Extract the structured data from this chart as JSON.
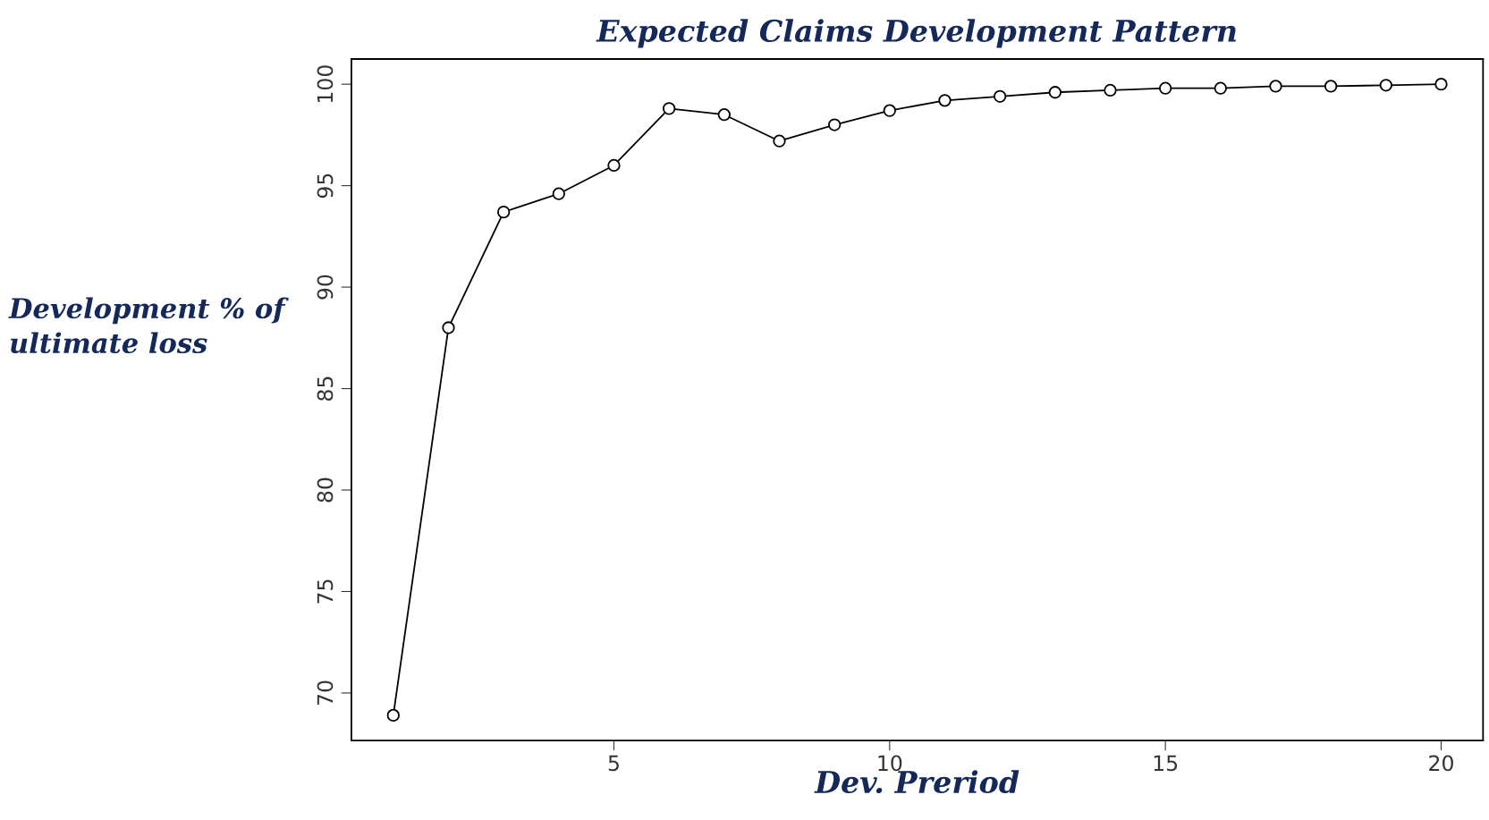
{
  "chart_data": {
    "type": "line",
    "title": "Expected Claims Development Pattern",
    "xlabel": "Dev. Preriod",
    "ylabel": "Development % of\nultimate loss",
    "x": [
      1,
      2,
      3,
      4,
      5,
      6,
      7,
      8,
      9,
      10,
      11,
      12,
      13,
      14,
      15,
      16,
      17,
      18,
      19,
      20
    ],
    "series": [
      {
        "color": "#000000",
        "values": [
          68.9,
          88.0,
          93.7,
          94.6,
          96.0,
          98.8,
          98.5,
          97.2,
          98.0,
          98.7,
          99.2,
          99.4,
          99.6,
          99.7,
          99.8,
          99.8,
          99.9,
          99.9,
          99.95,
          100
        ]
      }
    ],
    "xlim": [
      0.24,
      20.76
    ],
    "ylim": [
      67.66,
      101.24
    ],
    "xticks": [
      5,
      10,
      15,
      20
    ],
    "yticks": [
      70,
      75,
      80,
      85,
      90,
      95,
      100
    ],
    "marker": "circle",
    "line_style": "solid",
    "grid": false,
    "legend": false
  }
}
